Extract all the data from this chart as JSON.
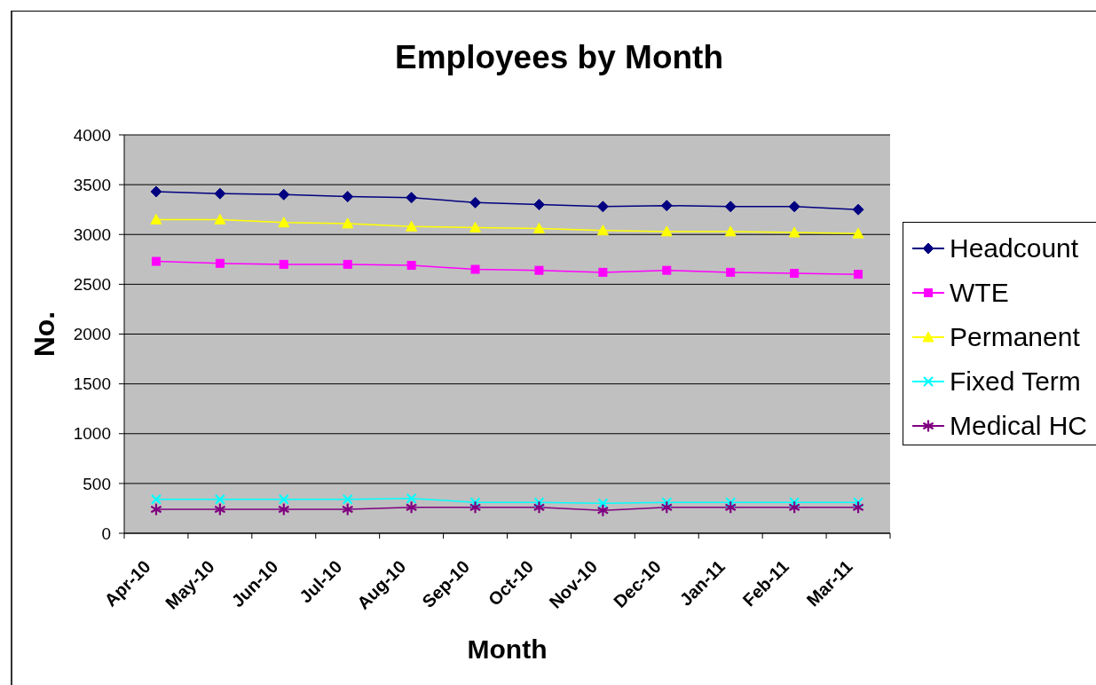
{
  "chart_data": {
    "type": "line",
    "title": "Employees by Month",
    "xlabel": "Month",
    "ylabel": "No.",
    "categories": [
      "Apr-10",
      "May-10",
      "Jun-10",
      "Jul-10",
      "Aug-10",
      "Sep-10",
      "Oct-10",
      "Nov-10",
      "Dec-10",
      "Jan-11",
      "Feb-11",
      "Mar-11"
    ],
    "series": [
      {
        "name": "Headcount",
        "color": "#000080",
        "marker": "diamond",
        "values": [
          3430,
          3410,
          3400,
          3380,
          3370,
          3320,
          3300,
          3280,
          3290,
          3280,
          3280,
          3250
        ]
      },
      {
        "name": "WTE",
        "color": "#ff00ff",
        "marker": "square",
        "values": [
          2730,
          2710,
          2700,
          2700,
          2690,
          2650,
          2640,
          2620,
          2640,
          2620,
          2610,
          2600
        ]
      },
      {
        "name": "Permanent",
        "color": "#ffff00",
        "marker": "triangle",
        "values": [
          3150,
          3150,
          3120,
          3110,
          3080,
          3070,
          3060,
          3040,
          3030,
          3030,
          3020,
          3010
        ]
      },
      {
        "name": "Fixed Term",
        "color": "#00ffff",
        "marker": "cross",
        "values": [
          340,
          340,
          340,
          340,
          350,
          310,
          310,
          300,
          310,
          310,
          310,
          310
        ]
      },
      {
        "name": "Medical HC",
        "color": "#800080",
        "marker": "star",
        "values": [
          240,
          240,
          240,
          240,
          260,
          260,
          260,
          230,
          260,
          260,
          260,
          260
        ]
      }
    ],
    "ylim": [
      0,
      4000
    ],
    "yticks": [
      0,
      500,
      1000,
      1500,
      2000,
      2500,
      3000,
      3500,
      4000
    ],
    "grid": "y",
    "legend": "right",
    "line_style": "solid"
  }
}
